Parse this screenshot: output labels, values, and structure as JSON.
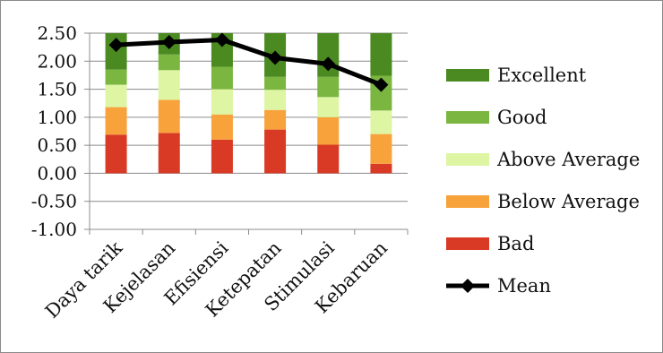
{
  "chart_data": {
    "type": "bar",
    "stacked": true,
    "categories": [
      "Daya tarik",
      "Kejelasan",
      "Efisiensi",
      "Ketepatan",
      "Stimulasi",
      "Kebaruan"
    ],
    "ylim": [
      -1.0,
      2.5
    ],
    "yticks": [
      "2.50",
      "2.00",
      "1.50",
      "1.00",
      "0.50",
      "0.00",
      "-0.50",
      "-1.00"
    ],
    "grid": true,
    "legend_position": "right",
    "series": [
      {
        "name": "Bad",
        "color": "#d93a25",
        "values": [
          0.69,
          0.72,
          0.6,
          0.78,
          0.51,
          0.17
        ]
      },
      {
        "name": "Below Average",
        "color": "#f8a23c",
        "values": [
          0.49,
          0.59,
          0.45,
          0.35,
          0.49,
          0.53
        ]
      },
      {
        "name": "Above Average",
        "color": "#def5a4",
        "values": [
          0.4,
          0.53,
          0.45,
          0.36,
          0.36,
          0.42
        ]
      },
      {
        "name": "Good",
        "color": "#7ab640",
        "values": [
          0.27,
          0.28,
          0.4,
          0.23,
          0.36,
          0.62
        ]
      },
      {
        "name": "Excellent",
        "color": "#4a8a20",
        "values": [
          0.65,
          0.38,
          0.6,
          0.78,
          0.78,
          0.76
        ]
      }
    ],
    "line_series": {
      "name": "Mean",
      "color": "#000000",
      "values": [
        2.29,
        2.34,
        2.38,
        2.06,
        1.95,
        1.58
      ]
    }
  }
}
